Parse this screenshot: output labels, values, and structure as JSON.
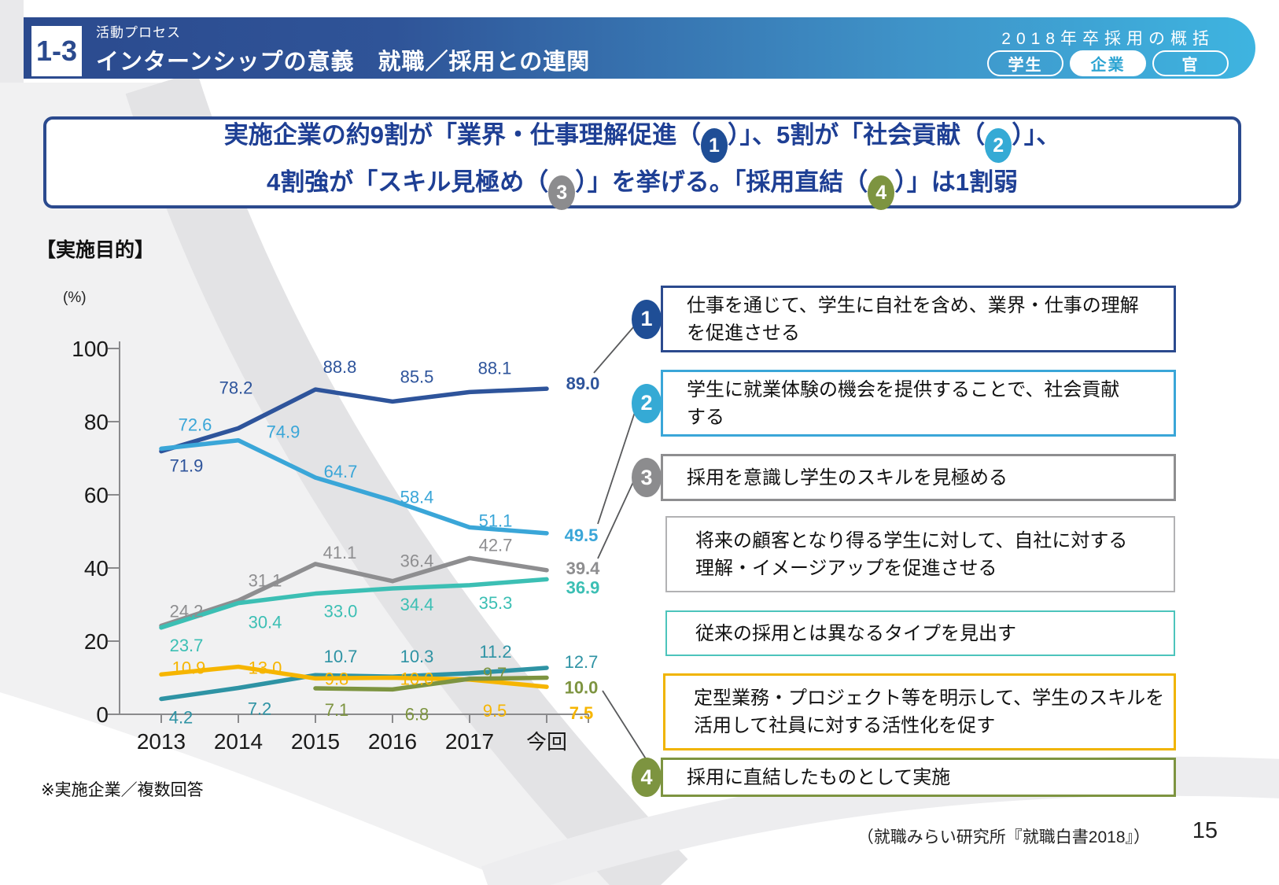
{
  "header": {
    "badge": "1-3",
    "category": "活動プロセス",
    "title": "インターンシップの意義　就職／採用との連関",
    "right_title": "2018年卒採用の概括",
    "tabs": [
      {
        "label": "学生",
        "active": false
      },
      {
        "label": "企業",
        "active": true
      },
      {
        "label": "官",
        "active": false
      }
    ]
  },
  "circle_colors": {
    "1": "#1f4e96",
    "2": "#35aad5",
    "3": "#8c8c8e",
    "4": "#7d9440"
  },
  "message": {
    "segments": [
      {
        "t": "実施企業の約9割が「業界・仕事理解促進（"
      },
      {
        "c": "1"
      },
      {
        "t": "）」、5割が「社会貢献（"
      },
      {
        "c": "2"
      },
      {
        "t": "）」、"
      },
      {
        "br": true
      },
      {
        "t": "4割強が「スキル見極め（"
      },
      {
        "c": "3"
      },
      {
        "t": "）」を挙げる。「採用直結（"
      },
      {
        "c": "4"
      },
      {
        "t": "）」は1割弱"
      }
    ]
  },
  "chart_data": {
    "type": "line",
    "title": "【実施目的】",
    "unit_label": "(%)",
    "x": [
      "2013",
      "2014",
      "2015",
      "2016",
      "2017",
      "今回"
    ],
    "ylim": [
      0,
      100
    ],
    "yticks": [
      0,
      20,
      40,
      60,
      80,
      100
    ],
    "grid": false,
    "legend_position": "right",
    "series": [
      {
        "name": "①仕事を通じて、学生に自社を含め、業界・仕事の理解を促進させる",
        "color": "#2e549b",
        "values": [
          71.9,
          78.2,
          88.8,
          85.5,
          88.1,
          89.0
        ]
      },
      {
        "name": "②学生に就業体験の機会を提供することで、社会貢献する",
        "color": "#3aa6d8",
        "values": [
          72.6,
          74.9,
          64.7,
          58.4,
          51.1,
          49.5
        ]
      },
      {
        "name": "③採用を意識し学生のスキルを見極める",
        "color": "#8e8e90",
        "values": [
          24.2,
          31.1,
          41.1,
          36.4,
          42.7,
          39.4
        ]
      },
      {
        "name": "将来の顧客となり得る学生に対して、自社に対する理解・イメージアップを促進させる",
        "color": "#3cbfb4",
        "values": [
          23.7,
          30.4,
          33.0,
          34.4,
          35.3,
          36.9
        ]
      },
      {
        "name": "従来の採用とは異なるタイプを見出す",
        "color": "#2e93a4",
        "values": [
          4.2,
          7.2,
          10.7,
          10.3,
          11.2,
          12.7
        ]
      },
      {
        "name": "定型業務・プロジェクト等を明示して、学生のスキルを活用して社員に対する活性化を促す",
        "color": "#f6b500",
        "values": [
          10.9,
          13.0,
          9.8,
          10.0,
          9.5,
          7.5
        ]
      },
      {
        "name": "④採用に直結したものとして実施",
        "color": "#7d9440",
        "values": [
          null,
          null,
          7.1,
          6.8,
          9.7,
          10.0
        ]
      }
    ]
  },
  "legend": [
    {
      "num": "1",
      "border": "#2b4a8e",
      "lines": [
        "仕事を通じて、学生に自社を含め、業界・仕事の理解",
        "を促進させる"
      ]
    },
    {
      "num": "2",
      "border": "#3aa6d8",
      "lines": [
        "学生に就業体験の機会を提供することで、社会貢献",
        "する"
      ]
    },
    {
      "num": "3",
      "border": "#8e8e90",
      "lines": [
        "採用を意識し学生のスキルを見極める"
      ]
    },
    {
      "num": null,
      "border": "#b2b2b4",
      "lines": [
        "将来の顧客となり得る学生に対して、自社に対する",
        "理解・イメージアップを促進させる"
      ]
    },
    {
      "num": null,
      "border": "#4cc4bc",
      "lines": [
        "従来の採用とは異なるタイプを見出す"
      ]
    },
    {
      "num": null,
      "border": "#f0b400",
      "lines": [
        "定型業務・プロジェクト等を明示して、学生のスキルを",
        "活用して社員に対する活性化を促す"
      ]
    },
    {
      "num": "4",
      "border": "#7d9440",
      "lines": [
        "採用に直結したものとして実施"
      ]
    }
  ],
  "footnote": "※実施企業／複数回答",
  "footer": {
    "source": "（就職みらい研究所『就職白書2018』）",
    "page": "15"
  }
}
